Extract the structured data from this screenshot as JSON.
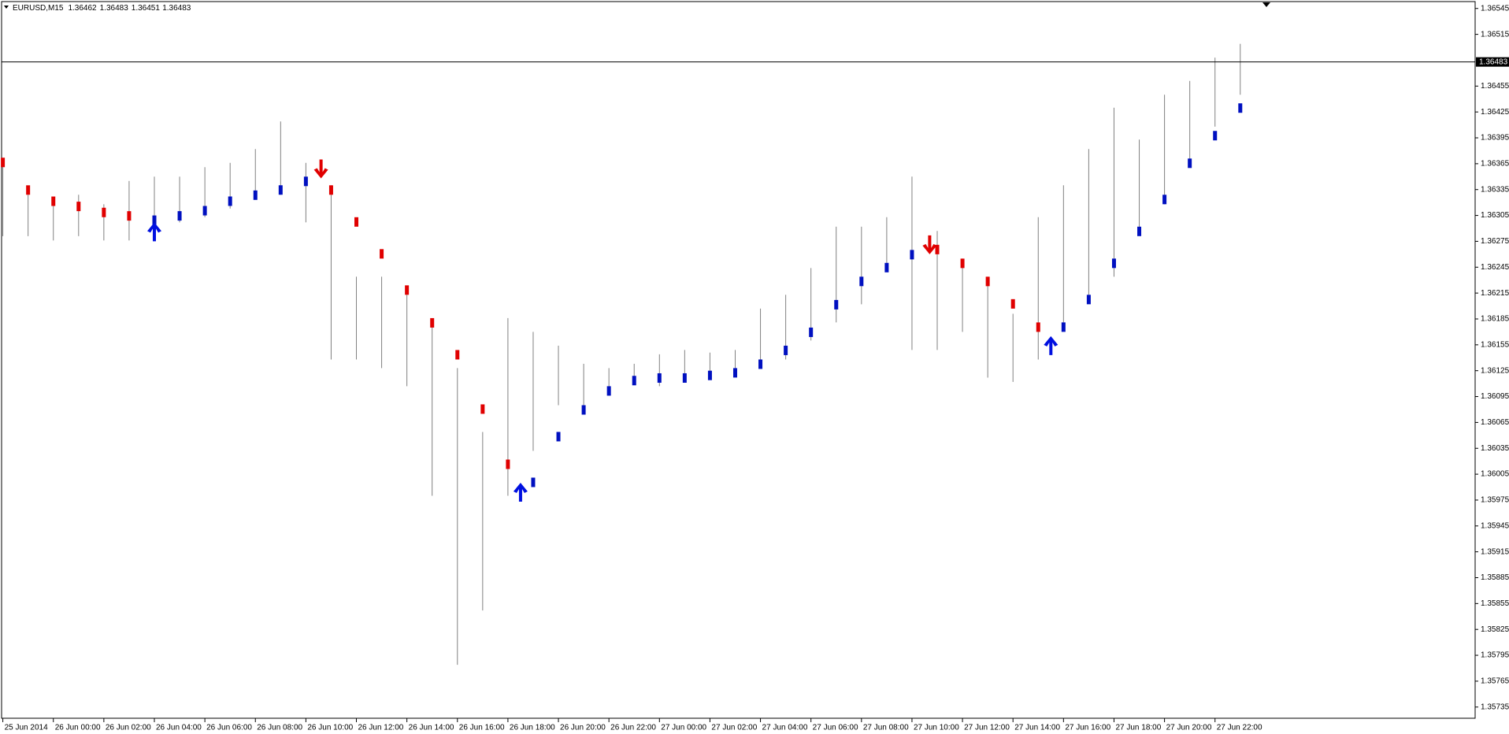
{
  "chart_data": {
    "type": "ohlc",
    "title": "EURUSD,M15",
    "header_values": [
      1.36462,
      1.36483,
      1.36451,
      1.36483
    ],
    "last_price": 1.36483,
    "x": [
      -2,
      -1,
      0,
      1,
      2,
      3,
      4,
      5,
      6,
      7,
      8,
      9,
      10,
      11,
      12,
      13,
      14,
      15,
      16,
      17,
      18,
      19,
      20,
      21,
      22,
      23,
      24,
      25,
      26,
      27,
      28,
      29,
      30,
      31,
      32,
      33,
      34,
      35,
      36,
      37,
      38,
      39,
      40,
      41,
      42,
      43,
      44,
      45,
      46,
      47
    ],
    "high": [
      1.36371,
      1.36329,
      1.36324,
      1.36329,
      1.36318,
      1.36345,
      1.3635,
      1.3635,
      1.36361,
      1.36366,
      1.36382,
      1.36414,
      1.36366,
      1.3634,
      1.36234,
      1.36234,
      1.36213,
      1.36181,
      1.36128,
      1.36054,
      1.36186,
      1.3617,
      1.36154,
      1.36133,
      1.36128,
      1.36133,
      1.36144,
      1.36149,
      1.36146,
      1.36149,
      1.36197,
      1.36213,
      1.36244,
      1.36292,
      1.36292,
      1.36303,
      1.3635,
      1.36287,
      1.36255,
      1.36234,
      1.36191,
      1.36303,
      1.3634,
      1.36382,
      1.3643,
      1.36393,
      1.36445,
      1.36461,
      1.36488,
      1.36504
    ],
    "low": [
      1.36281,
      1.36281,
      1.36276,
      1.36281,
      1.36276,
      1.36276,
      1.36287,
      1.36297,
      1.36303,
      1.36313,
      1.36324,
      1.36329,
      1.36297,
      1.36138,
      1.36138,
      1.36128,
      1.36107,
      1.3598,
      1.35784,
      1.35847,
      1.3598,
      1.36032,
      1.36085,
      1.3608,
      1.36096,
      1.36112,
      1.36107,
      1.36112,
      1.36117,
      1.36122,
      1.36128,
      1.36138,
      1.3616,
      1.36181,
      1.36202,
      1.36244,
      1.36149,
      1.36149,
      1.3617,
      1.36117,
      1.36112,
      1.36138,
      1.36181,
      1.36213,
      1.36234,
      1.36287,
      1.36318,
      1.36361,
      1.36408,
      1.36445
    ],
    "bar_color": "#808080",
    "trend_down": {
      "color": "#e00000",
      "values": [
        1.36361,
        1.36329,
        1.36316,
        1.3631,
        1.36303,
        1.36299,
        null,
        null,
        null,
        null,
        null,
        null,
        null,
        1.36329,
        1.36292,
        1.36255,
        1.36213,
        1.36175,
        1.36138,
        1.36075,
        1.36011,
        null,
        null,
        null,
        null,
        null,
        null,
        null,
        null,
        null,
        null,
        null,
        null,
        null,
        null,
        null,
        null,
        1.3626,
        1.36244,
        1.36223,
        1.36197,
        1.3617,
        null,
        null,
        null,
        null,
        null,
        null,
        null,
        null
      ]
    },
    "trend_up": {
      "color": "#0010c0",
      "values": [
        null,
        null,
        null,
        null,
        null,
        null,
        1.36305,
        1.3631,
        1.36316,
        1.36327,
        1.36334,
        1.3634,
        1.3635,
        null,
        null,
        null,
        null,
        null,
        null,
        null,
        null,
        1.36001,
        1.36054,
        1.36085,
        1.36107,
        1.36119,
        1.36122,
        1.36122,
        1.36125,
        1.36128,
        1.36138,
        1.36154,
        1.36175,
        1.36207,
        1.36234,
        1.3625,
        1.36265,
        null,
        null,
        null,
        null,
        null,
        1.36181,
        1.36213,
        1.36255,
        1.36292,
        1.36329,
        1.36371,
        1.36403,
        1.36435
      ]
    },
    "arrows_up": {
      "color": "#0010e0",
      "x": [
        4,
        18.5,
        39.5
      ],
      "y": [
        1.36297,
        1.35995,
        1.36165
      ]
    },
    "arrows_down": {
      "color": "#e00000",
      "x": [
        10.6,
        34.7
      ],
      "y": [
        1.36348,
        1.3626
      ]
    },
    "xlim": [
      -2.05,
      56.3
    ],
    "ylim": [
      1.35722,
      1.36553
    ],
    "xticks": [
      {
        "value": -2,
        "label": "25 Jun 2014"
      },
      {
        "value": 0,
        "label": "26 Jun 00:00"
      },
      {
        "value": 2,
        "label": "26 Jun 02:00"
      },
      {
        "value": 4,
        "label": "26 Jun 04:00"
      },
      {
        "value": 6,
        "label": "26 Jun 06:00"
      },
      {
        "value": 8,
        "label": "26 Jun 08:00"
      },
      {
        "value": 10,
        "label": "26 Jun 10:00"
      },
      {
        "value": 12,
        "label": "26 Jun 12:00"
      },
      {
        "value": 14,
        "label": "26 Jun 14:00"
      },
      {
        "value": 16,
        "label": "26 Jun 16:00"
      },
      {
        "value": 18,
        "label": "26 Jun 18:00"
      },
      {
        "value": 20,
        "label": "26 Jun 20:00"
      },
      {
        "value": 22,
        "label": "26 Jun 22:00"
      },
      {
        "value": 24,
        "label": "27 Jun 00:00"
      },
      {
        "value": 26,
        "label": "27 Jun 02:00"
      },
      {
        "value": 28,
        "label": "27 Jun 04:00"
      },
      {
        "value": 30,
        "label": "27 Jun 06:00"
      },
      {
        "value": 32,
        "label": "27 Jun 08:00"
      },
      {
        "value": 34,
        "label": "27 Jun 10:00"
      },
      {
        "value": 36,
        "label": "27 Jun 12:00"
      },
      {
        "value": 38,
        "label": "27 Jun 14:00"
      },
      {
        "value": 40,
        "label": "27 Jun 16:00"
      },
      {
        "value": 42,
        "label": "27 Jun 18:00"
      },
      {
        "value": 44,
        "label": "27 Jun 20:00"
      },
      {
        "value": 46,
        "label": "27 Jun 22:00"
      }
    ],
    "yticks": [
      1.36545,
      1.36515,
      1.36455,
      1.36425,
      1.36395,
      1.36365,
      1.36335,
      1.36305,
      1.36275,
      1.36245,
      1.36215,
      1.36185,
      1.36155,
      1.36125,
      1.36095,
      1.36065,
      1.36035,
      1.36005,
      1.35975,
      1.35945,
      1.35915,
      1.35885,
      1.35855,
      1.35825,
      1.35795,
      1.35765,
      1.35735
    ]
  }
}
